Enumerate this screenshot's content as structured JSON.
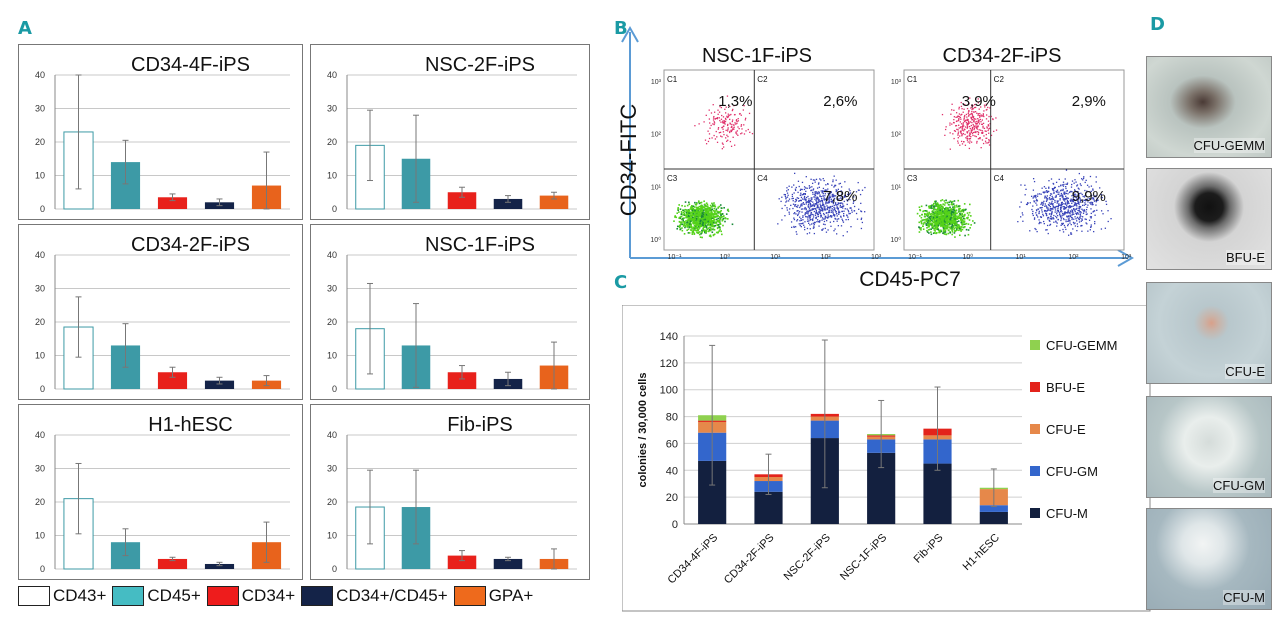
{
  "panel_labels": {
    "a": "A",
    "b": "B",
    "c": "C",
    "d": "D"
  },
  "panel_a": {
    "y_ticks": [
      "0",
      "10",
      "20",
      "30",
      "40"
    ],
    "charts": [
      {
        "title": "CD34-4F-iPS",
        "values": [
          23,
          14,
          3.5,
          2,
          7
        ],
        "errors": [
          17,
          6.5,
          1,
          1,
          10
        ]
      },
      {
        "title": "NSC-2F-iPS",
        "values": [
          19,
          15,
          5,
          3,
          4
        ],
        "errors": [
          10.5,
          13,
          1.5,
          1,
          1
        ]
      },
      {
        "title": "CD34-2F-iPS",
        "values": [
          18.5,
          13,
          5,
          2.5,
          2.5
        ],
        "errors": [
          9,
          6.5,
          1.5,
          1,
          1.5
        ]
      },
      {
        "title": "NSC-1F-iPS",
        "values": [
          18,
          13,
          5,
          3,
          7
        ],
        "errors": [
          13.5,
          12.5,
          2,
          2,
          7
        ]
      },
      {
        "title": "H1-hESC",
        "values": [
          21,
          8,
          3,
          1.5,
          8
        ],
        "errors": [
          10.5,
          4,
          0.5,
          0.5,
          6
        ]
      },
      {
        "title": "Fib-iPS",
        "values": [
          18.5,
          18.5,
          4,
          3,
          3
        ],
        "errors": [
          11,
          11,
          1.5,
          0.5,
          3
        ]
      }
    ],
    "legend": [
      {
        "label": "CD43+",
        "color": "#ffffff"
      },
      {
        "label": "CD45+",
        "color": "#3d9aa6"
      },
      {
        "label": "CD34+",
        "color": "#e8211b"
      },
      {
        "label": "CD34+/CD45+",
        "color": "#142348"
      },
      {
        "label": "GPA+",
        "color": "#e8631c"
      }
    ]
  },
  "panel_b": {
    "y_axis_label": "CD34-FITC",
    "x_axis_label": "CD45-PC7",
    "plots": [
      {
        "title": "NSC-1F-iPS",
        "q1": "1,3%",
        "q2": "2,6%",
        "q4": "7,8%",
        "quad_labels": [
          "C1",
          "C2",
          "C3",
          "C4"
        ],
        "x_ticks": [
          "10⁻¹",
          "10⁰",
          "10¹",
          "10²",
          "10³"
        ],
        "y_ticks": [
          "10³",
          "10²",
          "10¹",
          "10⁰"
        ]
      },
      {
        "title": "CD34-2F-iPS",
        "q1": "3,9%",
        "q2": "2,9%",
        "q4": "9,9%",
        "quad_labels": [
          "C1",
          "C2",
          "C3",
          "C4"
        ],
        "x_ticks": [
          "10⁻¹",
          "10⁰",
          "10¹",
          "10²",
          "10³"
        ],
        "y_ticks": [
          "10³",
          "10²",
          "10¹",
          "10⁰"
        ]
      }
    ]
  },
  "panel_d": {
    "images": [
      {
        "label": "CFU-GEMM"
      },
      {
        "label": "BFU-E"
      },
      {
        "label": "CFU-E"
      },
      {
        "label": "CFU-GM"
      },
      {
        "label": "CFU-M"
      }
    ]
  },
  "chart_data": [
    {
      "type": "bar",
      "title": "CD34-4F-iPS",
      "categories": [
        "CD43+",
        "CD45+",
        "CD34+",
        "CD34+/CD45+",
        "GPA+"
      ],
      "values": [
        23,
        14,
        3.5,
        2,
        7
      ],
      "errors": [
        17,
        6.5,
        1,
        1,
        10
      ],
      "ylim": [
        0,
        40
      ]
    },
    {
      "type": "bar",
      "title": "NSC-2F-iPS",
      "categories": [
        "CD43+",
        "CD45+",
        "CD34+",
        "CD34+/CD45+",
        "GPA+"
      ],
      "values": [
        19,
        15,
        5,
        3,
        4
      ],
      "errors": [
        10.5,
        13,
        1.5,
        1,
        1
      ],
      "ylim": [
        0,
        40
      ]
    },
    {
      "type": "bar",
      "title": "CD34-2F-iPS",
      "categories": [
        "CD43+",
        "CD45+",
        "CD34+",
        "CD34+/CD45+",
        "GPA+"
      ],
      "values": [
        18.5,
        13,
        5,
        2.5,
        2.5
      ],
      "errors": [
        9,
        6.5,
        1.5,
        1,
        1.5
      ],
      "ylim": [
        0,
        40
      ]
    },
    {
      "type": "bar",
      "title": "NSC-1F-iPS",
      "categories": [
        "CD43+",
        "CD45+",
        "CD34+",
        "CD34+/CD45+",
        "GPA+"
      ],
      "values": [
        18,
        13,
        5,
        3,
        7
      ],
      "errors": [
        13.5,
        12.5,
        2,
        2,
        7
      ],
      "ylim": [
        0,
        40
      ]
    },
    {
      "type": "bar",
      "title": "H1-hESC",
      "categories": [
        "CD43+",
        "CD45+",
        "CD34+",
        "CD34+/CD45+",
        "GPA+"
      ],
      "values": [
        21,
        8,
        3,
        1.5,
        8
      ],
      "errors": [
        10.5,
        4,
        0.5,
        0.5,
        6
      ],
      "ylim": [
        0,
        40
      ]
    },
    {
      "type": "bar",
      "title": "Fib-iPS",
      "categories": [
        "CD43+",
        "CD45+",
        "CD34+",
        "CD34+/CD45+",
        "GPA+"
      ],
      "values": [
        18.5,
        18.5,
        4,
        3,
        3
      ],
      "errors": [
        11,
        11,
        1.5,
        0.5,
        3
      ],
      "ylim": [
        0,
        40
      ]
    },
    {
      "type": "bar",
      "stacked": true,
      "title": "",
      "ylabel": "colonies / 30,000 cells",
      "ylim": [
        0,
        140
      ],
      "y_ticks": [
        "0",
        "20",
        "40",
        "60",
        "80",
        "100",
        "120",
        "140"
      ],
      "categories": [
        "CD34-4F-iPS",
        "CD34-2F-iPS",
        "NSC-2F-iPS",
        "NSC-1F-iPS",
        "Fib-iPS",
        "H1-hESC"
      ],
      "series": [
        {
          "name": "CFU-M",
          "color": "#13203f",
          "values": [
            47,
            24,
            64,
            53,
            45,
            9
          ]
        },
        {
          "name": "CFU-GM",
          "color": "#3366cc",
          "values": [
            21,
            8,
            13,
            10,
            18,
            5
          ]
        },
        {
          "name": "CFU-E",
          "color": "#e6884a",
          "values": [
            8,
            3,
            3,
            2,
            3,
            12
          ]
        },
        {
          "name": "BFU-E",
          "color": "#e3231b",
          "values": [
            1,
            2,
            2,
            1,
            5,
            0
          ]
        },
        {
          "name": "CFU-GEMM",
          "color": "#8fd14f",
          "values": [
            4,
            0,
            0,
            1,
            0,
            1
          ]
        }
      ],
      "errors": [
        52,
        15,
        55,
        25,
        31,
        14
      ],
      "legend_order": [
        "CFU-GEMM",
        "BFU-E",
        "CFU-E",
        "CFU-GM",
        "CFU-M"
      ]
    }
  ]
}
